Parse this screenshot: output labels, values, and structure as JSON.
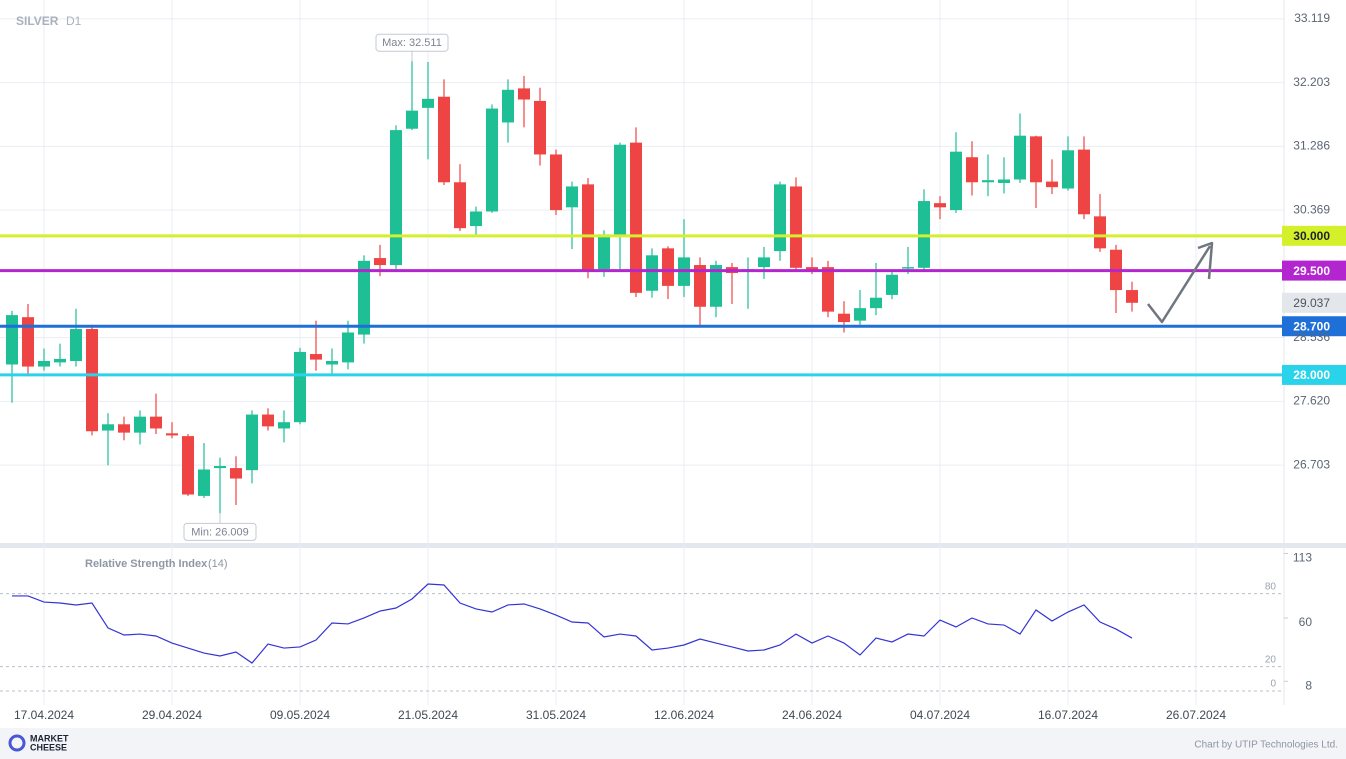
{
  "chart_data": {
    "type": "candlestick",
    "title": "SILVER",
    "timeframe": "D1",
    "categories": [
      null,
      null,
      "17.04.2024",
      null,
      null,
      null,
      null,
      null,
      null,
      null,
      "29.04.2024",
      null,
      null,
      null,
      null,
      null,
      null,
      null,
      "09.05.2024",
      null,
      null,
      null,
      null,
      null,
      null,
      null,
      "21.05.2024",
      null,
      null,
      null,
      null,
      null,
      null,
      null,
      "31.05.2024",
      null,
      null,
      null,
      null,
      null,
      null,
      null,
      "12.06.2024",
      null,
      null,
      null,
      null,
      null,
      null,
      null,
      "24.06.2024",
      null,
      null,
      null,
      null,
      null,
      null,
      null,
      "04.07.2024",
      null,
      null,
      null,
      null,
      null,
      null,
      null,
      "16.07.2024",
      null,
      null,
      null,
      null,
      null,
      null,
      null,
      "26.07.2024",
      null,
      null,
      null,
      null,
      null
    ],
    "candles": [
      [
        28.15,
        28.92,
        27.6,
        28.86
      ],
      [
        28.83,
        29.02,
        27.98,
        28.12
      ],
      [
        28.12,
        28.38,
        28.06,
        28.2
      ],
      [
        28.18,
        28.45,
        28.12,
        28.23
      ],
      [
        28.2,
        28.95,
        28.12,
        28.66
      ],
      [
        28.66,
        28.72,
        27.13,
        27.19
      ],
      [
        27.2,
        27.45,
        26.7,
        27.29
      ],
      [
        27.29,
        27.4,
        27.06,
        27.17
      ],
      [
        27.17,
        27.49,
        27.0,
        27.4
      ],
      [
        27.4,
        27.73,
        27.15,
        27.23
      ],
      [
        27.16,
        27.32,
        27.09,
        27.13
      ],
      [
        27.12,
        27.15,
        26.26,
        26.28
      ],
      [
        26.26,
        27.02,
        26.23,
        26.64
      ],
      [
        26.66,
        26.81,
        26.009,
        26.69
      ],
      [
        26.66,
        26.83,
        26.13,
        26.51
      ],
      [
        26.63,
        27.49,
        26.44,
        27.43
      ],
      [
        27.43,
        27.52,
        27.2,
        27.26
      ],
      [
        27.23,
        27.49,
        27.03,
        27.32
      ],
      [
        27.32,
        28.39,
        27.29,
        28.33
      ],
      [
        28.3,
        28.78,
        28.06,
        28.22
      ],
      [
        28.15,
        28.38,
        28.02,
        28.2
      ],
      [
        28.18,
        28.78,
        28.08,
        28.61
      ],
      [
        28.58,
        29.72,
        28.45,
        29.64
      ],
      [
        29.68,
        29.87,
        29.42,
        29.58
      ],
      [
        29.58,
        31.59,
        29.48,
        31.52
      ],
      [
        31.54,
        32.511,
        31.52,
        31.8
      ],
      [
        31.84,
        32.5,
        31.1,
        31.97
      ],
      [
        32.0,
        32.25,
        30.73,
        30.77
      ],
      [
        30.77,
        31.03,
        30.07,
        30.11
      ],
      [
        30.14,
        30.42,
        30.02,
        30.35
      ],
      [
        30.35,
        31.89,
        30.33,
        31.83
      ],
      [
        31.63,
        32.25,
        31.34,
        32.1
      ],
      [
        32.12,
        32.3,
        31.56,
        31.96
      ],
      [
        31.94,
        32.13,
        31.01,
        31.17
      ],
      [
        31.17,
        31.24,
        30.3,
        30.37
      ],
      [
        30.41,
        30.78,
        29.81,
        30.71
      ],
      [
        30.74,
        30.83,
        29.39,
        29.51
      ],
      [
        29.52,
        30.08,
        29.41,
        30.02
      ],
      [
        30.01,
        31.34,
        29.52,
        31.31
      ],
      [
        31.34,
        31.56,
        29.12,
        29.18
      ],
      [
        29.21,
        29.82,
        29.11,
        29.72
      ],
      [
        29.82,
        29.85,
        29.09,
        29.28
      ],
      [
        29.28,
        30.24,
        29.12,
        29.69
      ],
      [
        29.58,
        29.69,
        28.68,
        28.98
      ],
      [
        28.98,
        29.64,
        28.83,
        29.58
      ],
      [
        29.55,
        29.61,
        29.02,
        29.465
      ],
      [
        29.49,
        29.69,
        28.95,
        29.52
      ],
      [
        29.55,
        29.84,
        29.38,
        29.69
      ],
      [
        29.78,
        30.78,
        29.64,
        30.74
      ],
      [
        30.71,
        30.84,
        29.48,
        29.54
      ],
      [
        29.55,
        29.69,
        29.45,
        29.49
      ],
      [
        29.55,
        29.64,
        28.83,
        28.91
      ],
      [
        28.88,
        29.06,
        28.61,
        28.76
      ],
      [
        28.78,
        29.22,
        28.72,
        28.96
      ],
      [
        28.96,
        29.61,
        28.86,
        29.11
      ],
      [
        29.15,
        29.51,
        29.09,
        29.44
      ],
      [
        29.54,
        29.84,
        29.45,
        29.55
      ],
      [
        29.54,
        30.67,
        29.49,
        30.5
      ],
      [
        30.47,
        30.57,
        30.24,
        30.41
      ],
      [
        30.37,
        31.49,
        30.33,
        31.21
      ],
      [
        31.13,
        31.36,
        30.58,
        30.77
      ],
      [
        30.77,
        31.17,
        30.57,
        30.8
      ],
      [
        30.76,
        31.13,
        30.61,
        30.81
      ],
      [
        30.81,
        31.76,
        30.76,
        31.44
      ],
      [
        31.43,
        31.44,
        30.4,
        30.77
      ],
      [
        30.78,
        31.1,
        30.6,
        30.7
      ],
      [
        30.68,
        31.43,
        30.65,
        31.23
      ],
      [
        31.24,
        31.43,
        30.24,
        30.31
      ],
      [
        30.28,
        30.6,
        29.77,
        29.82
      ],
      [
        29.8,
        29.87,
        28.89,
        29.22
      ],
      [
        29.22,
        29.34,
        28.91,
        29.037
      ]
    ],
    "up_color": "#1fbf96",
    "down_color": "#ef4444",
    "ylim": [
      25.583,
      33.391
    ],
    "yticks": [
      33.119,
      32.203,
      31.286,
      30.369,
      28.536,
      {
        "value": 27.62,
        "label": "27.620"
      },
      26.703
    ],
    "grid": true,
    "levels": [
      {
        "value": 30,
        "label": "30.000",
        "color": "#d4f02a",
        "text_color": "#1d232b"
      },
      {
        "value": 29.5,
        "label": "29.500",
        "color": "#b325cf",
        "text_color": "#ffffff"
      },
      {
        "value": 28.7,
        "label": "28.700",
        "color": "#1f6fd8",
        "text_color": "#ffffff"
      },
      {
        "value": 28,
        "label": "28.000",
        "color": "#2bd3ea",
        "text_color": "#ffffff"
      }
    ],
    "annotations": [
      "Max: 32.511",
      "Min: 26.009"
    ],
    "rsi": {
      "title": "Relative Strength Index",
      "period": "(14)",
      "color": "#3434d4",
      "values": [
        78.1,
        78.1,
        73.1,
        72.3,
        70.7,
        72.3,
        51.8,
        46.0,
        46.8,
        45.2,
        39.4,
        35.3,
        31.2,
        28.8,
        32.0,
        23.0,
        38.6,
        35.3,
        36.2,
        41.9,
        55.9,
        55.1,
        60.0,
        65.7,
        68.2,
        75.6,
        87.9,
        87.1,
        72.3,
        67.4,
        64.9,
        70.7,
        71.5,
        67.4,
        62.4,
        56.7,
        55.9,
        44.4,
        46.8,
        45.2,
        33.7,
        35.3,
        37.8,
        42.7,
        39.4,
        36.2,
        32.9,
        33.7,
        37.8,
        46.8,
        39.4,
        45.2,
        39.4,
        29.6,
        43.5,
        40.3,
        46.8,
        45.2,
        58.3,
        52.6,
        60.0,
        55.1,
        54.2,
        46.8,
        66.6,
        57.5,
        64.9,
        70.7,
        56.7,
        50.9,
        43.5
      ],
      "ylim": [
        -11.5,
        117.5
      ],
      "yticks": [
        113,
        60,
        8
      ],
      "levels": [
        80,
        20,
        0
      ]
    }
  },
  "footer": {
    "logo": [
      "MARKET",
      "CHEESE"
    ],
    "credit": "Chart by UTIP Technologies Ltd."
  }
}
